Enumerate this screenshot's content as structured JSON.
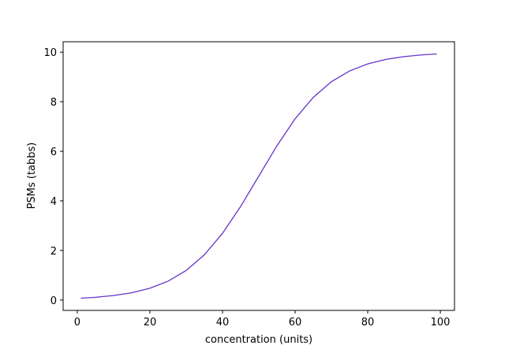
{
  "chart_data": {
    "type": "line",
    "xlabel": "concentration (units)",
    "ylabel": "PSMs (tabbs)",
    "x": [
      1,
      5,
      10,
      15,
      20,
      25,
      30,
      35,
      40,
      45,
      50,
      55,
      60,
      65,
      70,
      75,
      80,
      85,
      90,
      95,
      99
    ],
    "series": [
      {
        "color": "#6633cc",
        "values": [
          0.074,
          0.11,
          0.18,
          0.293,
          0.474,
          0.759,
          1.192,
          1.824,
          2.689,
          3.775,
          5.0,
          6.225,
          7.311,
          8.176,
          8.808,
          9.241,
          9.526,
          9.707,
          9.82,
          9.89,
          9.926
        ]
      }
    ],
    "xlim": [
      -3.9,
      103.9
    ],
    "ylim": [
      -0.419,
      10.419
    ],
    "xticks": [
      0,
      20,
      40,
      60,
      80,
      100
    ],
    "yticks": [
      0,
      2,
      4,
      6,
      8,
      10
    ]
  }
}
